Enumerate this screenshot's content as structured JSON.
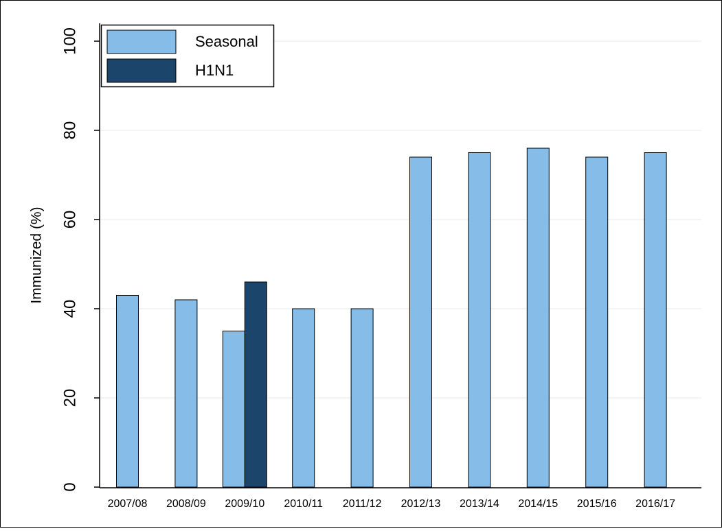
{
  "chart_data": {
    "type": "bar",
    "title": "",
    "xlabel": "",
    "ylabel": "Immunized (%)",
    "ylim": [
      0,
      100
    ],
    "yticks": [
      0,
      20,
      40,
      60,
      80,
      100
    ],
    "grid": true,
    "legend_position": "top-left",
    "categories": [
      "2007/08",
      "2008/09",
      "2009/10",
      "2010/11",
      "2011/12",
      "2012/13",
      "2013/14",
      "2014/15",
      "2015/16",
      "2016/17"
    ],
    "series": [
      {
        "name": "Seasonal",
        "color": "#85bde8",
        "values": [
          43,
          42,
          35,
          40,
          40,
          74,
          75,
          76,
          74,
          75
        ]
      },
      {
        "name": "H1N1",
        "color": "#1c456c",
        "values": [
          null,
          null,
          46,
          null,
          null,
          null,
          null,
          null,
          null,
          null
        ]
      }
    ]
  }
}
